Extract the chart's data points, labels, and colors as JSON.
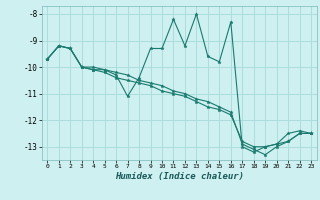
{
  "background_color": "#cef0f0",
  "grid_color": "#aadddd",
  "line_color": "#1a7a6e",
  "marker_color": "#1a7a6e",
  "xlabel": "Humidex (Indice chaleur)",
  "xlim": [
    -0.5,
    23.5
  ],
  "ylim": [
    -13.5,
    -7.7
  ],
  "yticks": [
    -13,
    -12,
    -11,
    -10,
    -9,
    -8
  ],
  "xticks": [
    0,
    1,
    2,
    3,
    4,
    5,
    6,
    7,
    8,
    9,
    10,
    11,
    12,
    13,
    14,
    15,
    16,
    17,
    18,
    19,
    20,
    21,
    22,
    23
  ],
  "series": [
    {
      "x": [
        0,
        1,
        2,
        3,
        4,
        5,
        6,
        7,
        8,
        9,
        10,
        11,
        12,
        13,
        14,
        15,
        16,
        17,
        18,
        19,
        20,
        21,
        22,
        23
      ],
      "y": [
        -9.7,
        -9.2,
        -9.3,
        -10.0,
        -10.1,
        -10.1,
        -10.3,
        -11.1,
        -10.4,
        -9.3,
        -9.3,
        -8.2,
        -9.2,
        -8.0,
        -9.6,
        -9.8,
        -8.3,
        -13.0,
        -13.2,
        -13.0,
        -12.9,
        -12.5,
        -12.4,
        -12.5
      ]
    },
    {
      "x": [
        0,
        1,
        2,
        3,
        4,
        5,
        6,
        7,
        8,
        9,
        10,
        11,
        12,
        13,
        14,
        15,
        16,
        17,
        18,
        19,
        20,
        21,
        22,
        23
      ],
      "y": [
        -9.7,
        -9.2,
        -9.3,
        -10.0,
        -10.1,
        -10.2,
        -10.4,
        -10.5,
        -10.6,
        -10.7,
        -10.9,
        -11.0,
        -11.1,
        -11.3,
        -11.5,
        -11.6,
        -11.8,
        -12.8,
        -13.0,
        -13.0,
        -12.9,
        -12.8,
        -12.5,
        -12.5
      ]
    },
    {
      "x": [
        0,
        1,
        2,
        3,
        4,
        5,
        6,
        7,
        8,
        9,
        10,
        11,
        12,
        13,
        14,
        15,
        16,
        17,
        18,
        19,
        20,
        21,
        22,
        23
      ],
      "y": [
        -9.7,
        -9.2,
        -9.3,
        -10.0,
        -10.0,
        -10.1,
        -10.2,
        -10.3,
        -10.5,
        -10.6,
        -10.7,
        -10.9,
        -11.0,
        -11.2,
        -11.3,
        -11.5,
        -11.7,
        -12.9,
        -13.1,
        -13.3,
        -13.0,
        -12.8,
        -12.5,
        -12.5
      ]
    }
  ]
}
